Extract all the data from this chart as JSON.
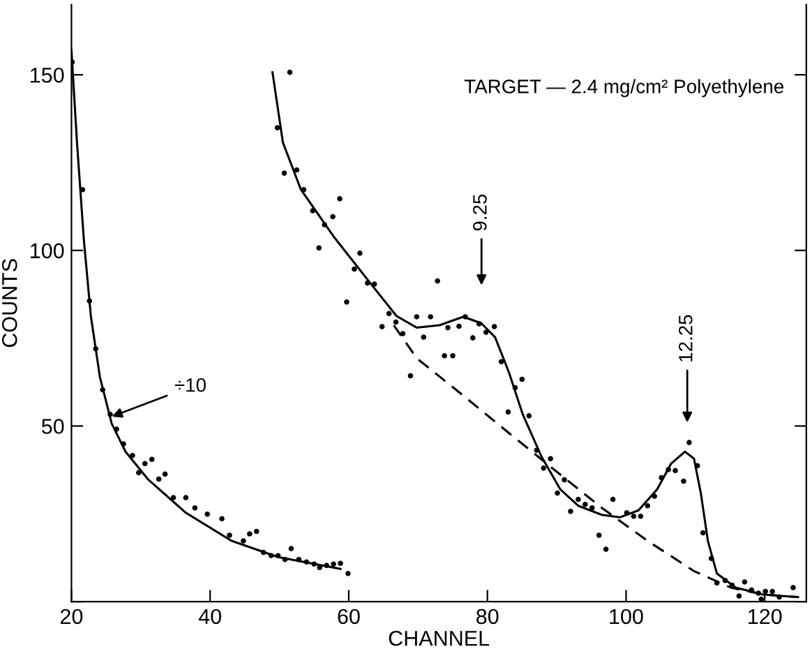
{
  "chart_data": {
    "type": "scatter",
    "xlabel": "CHANNEL",
    "ylabel": "COUNTS",
    "xlim": [
      20,
      126
    ],
    "ylim": [
      0,
      170
    ],
    "xticks": [
      20,
      40,
      60,
      80,
      100,
      120
    ],
    "yticks": [
      {
        "value": 0,
        "label": null
      },
      50,
      100,
      150
    ],
    "grid": false,
    "legend": false,
    "series": [
      {
        "type": "scatter",
        "marker": "circle",
        "color": "#000000",
        "x": [
          20.1,
          21.6,
          22.6,
          23.5,
          24.5,
          25.6,
          26.5,
          27.5,
          28.8,
          29.7,
          30.6,
          31.6,
          32.6,
          33.5,
          34.7,
          36.5,
          37.8,
          39.6,
          41.7,
          42.8,
          44.8,
          45.7,
          46.7,
          47.7,
          48.8,
          49.8,
          50.8,
          51.7,
          52.8,
          53.9,
          55,
          55.8,
          56.8,
          57.8,
          58.8,
          59.9
        ],
        "values": [
          153.6,
          117.3,
          85.6,
          72,
          60.3,
          53.3,
          49.1,
          44.9,
          41.6,
          36.7,
          39.3,
          40.5,
          34.9,
          36.3,
          29.6,
          29.6,
          26.7,
          24.9,
          23.6,
          18.9,
          17.3,
          19.3,
          20,
          14,
          13.1,
          13.1,
          12,
          15.1,
          12,
          11.3,
          10.7,
          9.7,
          10.3,
          10.7,
          10.9,
          8
        ]
      },
      {
        "type": "line",
        "line_style": "solid",
        "color": "#000000",
        "x": [
          20,
          20.8,
          21.8,
          22.8,
          24.1,
          25.8,
          27.8,
          31.1,
          36.5,
          43.1,
          49.8,
          58.8
        ],
        "values": [
          157,
          130.7,
          102.7,
          81.3,
          64,
          50.7,
          42.7,
          34.7,
          25.3,
          17.3,
          12.7,
          9.3
        ]
      },
      {
        "type": "scatter",
        "marker": "circle",
        "color": "#000000",
        "x": [
          49.7,
          50.7,
          51.5,
          52.5,
          53.5,
          54.8,
          55.7,
          56.5,
          57.7,
          58.7,
          59.7,
          60.8,
          61.6,
          62.7,
          63.7,
          64.8,
          65.8,
          66.8,
          67.8,
          68.9,
          69.8,
          70.8,
          71.8,
          72.8,
          73.8,
          74.3,
          75,
          75.9,
          76.8,
          77.9,
          78.8,
          79.8,
          81,
          82,
          83,
          84,
          85,
          86,
          87.1,
          88.1,
          89.1,
          90.1,
          91.1,
          92,
          93.1,
          94.1,
          95.1,
          96.1,
          97.1,
          98.1,
          100.1,
          101.1,
          102.1,
          103.1,
          104.1,
          105.1,
          106.1,
          107.1,
          108.3,
          109.1,
          110.3,
          111.1,
          112.3,
          113.1,
          114.3,
          115.3,
          116.3,
          117.1,
          118.1,
          119.1,
          119.5,
          120.1,
          121.1,
          122.1,
          124.1
        ],
        "values": [
          134.9,
          122,
          150.7,
          122.9,
          117.3,
          111.3,
          100.7,
          107.3,
          109.6,
          114.7,
          85.3,
          94.7,
          99.2,
          90.7,
          90.4,
          78.3,
          82,
          79.6,
          76.3,
          64.3,
          81.1,
          75.3,
          81.1,
          91.3,
          70,
          78,
          70,
          78.4,
          81.1,
          75.1,
          79.1,
          76.7,
          78.3,
          68.3,
          54,
          60.9,
          63.3,
          52.9,
          43.1,
          38,
          40.7,
          30.9,
          34.7,
          25.7,
          29.1,
          27.7,
          26.7,
          18.9,
          14.9,
          29.1,
          25.3,
          24.3,
          24.3,
          27.3,
          30,
          35.3,
          37.6,
          37.3,
          34.3,
          45.3,
          38.7,
          19.6,
          12.3,
          5.3,
          6,
          4.7,
          1.6,
          5.6,
          3.3,
          2.4,
          0.7,
          2.9,
          2.9,
          1.3,
          4
        ]
      },
      {
        "type": "line",
        "line_style": "solid",
        "color": "#000000",
        "x": [
          49,
          50.5,
          53.1,
          57.8,
          63.1,
          66.9,
          69.8,
          73.1,
          76.5,
          79.1,
          81.1,
          83.1,
          85.1,
          87.8,
          90.5,
          93.1,
          96.5,
          99.1,
          101.8,
          104.5,
          106.5,
          108.5,
          109.8,
          110.8,
          111.8,
          113.1,
          115.8,
          119.8,
          124.8
        ],
        "values": [
          150.7,
          130.7,
          117.3,
          104,
          90.7,
          81.3,
          78,
          78.7,
          81.1,
          79.3,
          75.3,
          65.3,
          53.3,
          41.3,
          32,
          27.3,
          24.7,
          24,
          26,
          32,
          39.3,
          42.7,
          40.7,
          30.7,
          17.3,
          8,
          4,
          2,
          1.3
        ]
      },
      {
        "type": "line",
        "line_style": "dashed",
        "color": "#000000",
        "x": [
          66.5,
          69.8,
          76.5,
          83.1,
          89.8,
          96.5,
          103.1,
          109.8,
          115.1,
          119.8,
          124.8
        ],
        "values": [
          78.7,
          69.3,
          58.7,
          48,
          37.3,
          26.7,
          17.3,
          8.7,
          4,
          2,
          1.3
        ]
      }
    ],
    "annotations": [
      {
        "text": "TARGET — 2.4 mg/cm² Polyethylene"
      },
      "÷10",
      "9.25",
      "12.25"
    ]
  }
}
